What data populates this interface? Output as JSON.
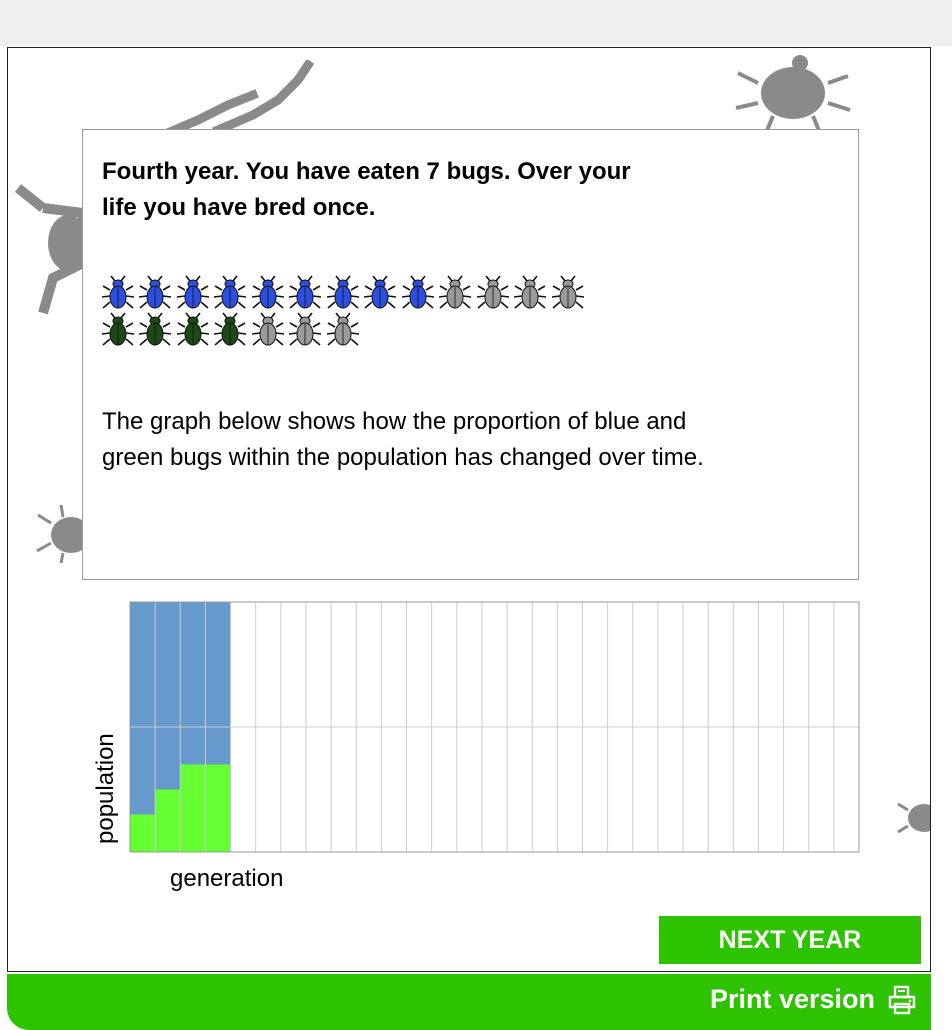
{
  "game": {
    "headline": "Fourth year. You have eaten 7 bugs. Over your life you have bred once.",
    "description": "The graph below shows how the proportion of blue and green bugs within the population has changed over time.",
    "bugs": {
      "blue_row": {
        "colored": 9,
        "grey": 4,
        "color": "#2d4fe0"
      },
      "green_row": {
        "colored": 4,
        "grey": 3,
        "color": "#1c4a14"
      },
      "grey_color": "#9a9a9a"
    },
    "next_button_label": "NEXT YEAR",
    "print_label": "Print version",
    "print_icon": "printer-icon",
    "colors": {
      "blue": "#6699cc",
      "green": "#66ff33",
      "accent": "#2ec300"
    }
  },
  "chart_data": {
    "type": "area",
    "xlabel": "generation",
    "ylabel": "population",
    "total_generations": 29,
    "ylim": [
      0,
      1
    ],
    "series": [
      {
        "values": [
          0.85,
          0.85,
          0.85,
          0.85
        ],
        "color": "#6699cc"
      },
      {
        "values": [
          0.15,
          0.25,
          0.35,
          0.35
        ],
        "color": "#66ff33"
      }
    ],
    "grid": true
  }
}
